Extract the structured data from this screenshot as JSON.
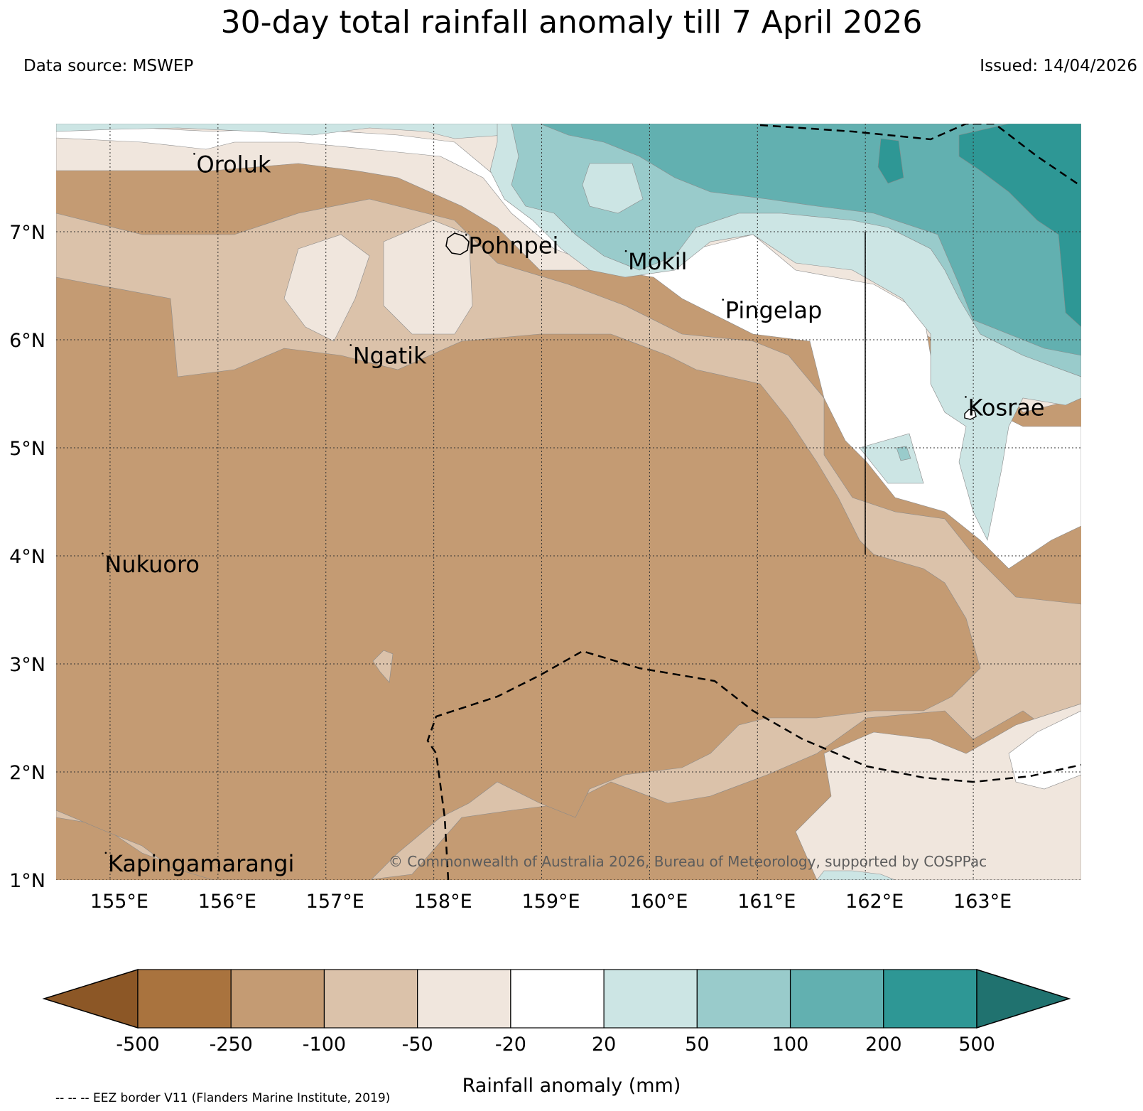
{
  "header": {
    "title": "30-day total rainfall anomaly till 7 April 2026",
    "data_source": "Data source: MSWEP",
    "issued": "Issued: 14/04/2026"
  },
  "map": {
    "lon_ticks": [
      "155°E",
      "156°E",
      "157°E",
      "158°E",
      "159°E",
      "160°E",
      "161°E",
      "162°E",
      "163°E"
    ],
    "lat_ticks": [
      "7°N",
      "6°N",
      "5°N",
      "4°N",
      "3°N",
      "2°N",
      "1°N"
    ],
    "lon_range": [
      154.5,
      164.0
    ],
    "lat_range": [
      1.0,
      8.0
    ],
    "places": [
      {
        "name": "Oroluk",
        "lon": 155.8,
        "lat": 7.55
      },
      {
        "name": "Pohnpei",
        "lon": 158.32,
        "lat": 6.8
      },
      {
        "name": "Mokil",
        "lon": 159.8,
        "lat": 6.65
      },
      {
        "name": "Pingelap",
        "lon": 160.7,
        "lat": 6.2
      },
      {
        "name": "Ngatik",
        "lon": 157.25,
        "lat": 5.78
      },
      {
        "name": "Kosrae",
        "lon": 162.95,
        "lat": 5.3
      },
      {
        "name": "Nukuoro",
        "lon": 154.95,
        "lat": 3.85
      },
      {
        "name": "Kapingamarangi",
        "lon": 154.98,
        "lat": 1.08
      }
    ],
    "copyright": "© Commonwealth of Australia 2026, Bureau of Meteorology, supported by COSPPac"
  },
  "colorbar": {
    "ticks": [
      "-500",
      "-250",
      "-100",
      "-50",
      "-20",
      "20",
      "50",
      "100",
      "200",
      "500"
    ],
    "colors": [
      "#8c5726",
      "#a9733e",
      "#c49b73",
      "#dbc2aa",
      "#f0e6dd",
      "#ffffff",
      "#cce5e4",
      "#99cbcb",
      "#62b0b0",
      "#2e9795",
      "#20726f"
    ],
    "label": "Rainfall anomaly (mm)",
    "eez_note": "-- -- -- EEZ border V11 (Flanders Marine Institute, 2019)"
  }
}
